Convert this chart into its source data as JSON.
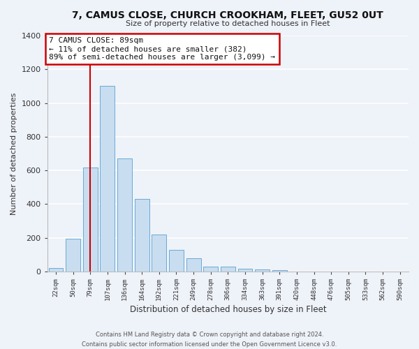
{
  "title": "7, CAMUS CLOSE, CHURCH CROOKHAM, FLEET, GU52 0UT",
  "subtitle": "Size of property relative to detached houses in Fleet",
  "xlabel": "Distribution of detached houses by size in Fleet",
  "ylabel": "Number of detached properties",
  "bar_color": "#c8ddf0",
  "bar_edge_color": "#6aaad4",
  "background_color": "#eef2f9",
  "grid_color": "#ffffff",
  "categories": [
    "22sqm",
    "50sqm",
    "79sqm",
    "107sqm",
    "136sqm",
    "164sqm",
    "192sqm",
    "221sqm",
    "249sqm",
    "278sqm",
    "306sqm",
    "334sqm",
    "363sqm",
    "391sqm",
    "420sqm",
    "448sqm",
    "476sqm",
    "505sqm",
    "533sqm",
    "562sqm",
    "590sqm"
  ],
  "values": [
    20,
    192,
    615,
    1100,
    670,
    430,
    220,
    128,
    77,
    28,
    28,
    15,
    10,
    8,
    0,
    0,
    0,
    0,
    0,
    0,
    0
  ],
  "ylim": [
    0,
    1400
  ],
  "yticks": [
    0,
    200,
    400,
    600,
    800,
    1000,
    1200,
    1400
  ],
  "red_line_x": "79sqm",
  "annotation_title": "7 CAMUS CLOSE: 89sqm",
  "annotation_line1": "← 11% of detached houses are smaller (382)",
  "annotation_line2": "89% of semi-detached houses are larger (3,099) →",
  "annotation_box_color": "#ffffff",
  "annotation_border_color": "#cc0000",
  "footer1": "Contains HM Land Registry data © Crown copyright and database right 2024.",
  "footer2": "Contains public sector information licensed under the Open Government Licence v3.0."
}
